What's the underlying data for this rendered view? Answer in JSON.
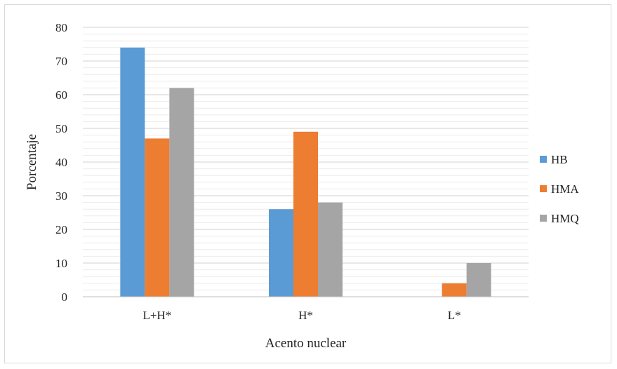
{
  "chart_data": {
    "type": "bar",
    "categories": [
      "L+H*",
      "H*",
      "L*"
    ],
    "series": [
      {
        "name": "HB",
        "color": "#5b9bd5",
        "values": [
          74,
          26,
          0
        ]
      },
      {
        "name": "HMA",
        "color": "#ed7d31",
        "values": [
          47,
          49,
          4
        ]
      },
      {
        "name": "HMQ",
        "color": "#a5a5a5",
        "values": [
          62,
          28,
          10
        ]
      }
    ],
    "title": "",
    "xlabel": "Acento nuclear",
    "ylabel": "Porcentaje",
    "ylim": [
      0,
      80
    ],
    "yticks": [
      0,
      10,
      20,
      30,
      40,
      50,
      60,
      70,
      80
    ],
    "minor_grid_step": 2,
    "grid": true,
    "legend_position": "right",
    "colors": {
      "major_grid": "#d0d0d0",
      "minor_grid": "#ececec",
      "axis": "#bfbfbf"
    }
  }
}
